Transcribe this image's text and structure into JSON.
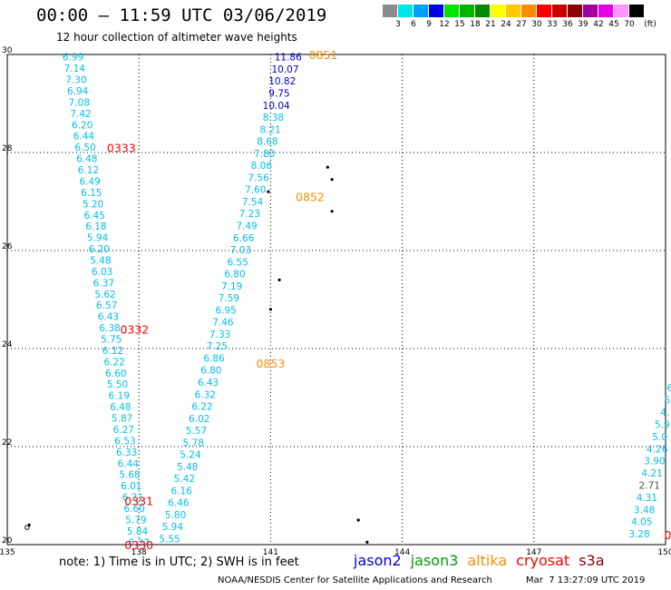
{
  "header": {
    "title": "00:00 – 11:59 UTC 03/06/2019",
    "subtitle": "12 hour collection of altimeter wave heights"
  },
  "legend": {
    "unit": "(ft)",
    "bins": [
      {
        "label": "3",
        "color": "#8c8c8c"
      },
      {
        "label": "6",
        "color": "#00e6e6"
      },
      {
        "label": "9",
        "color": "#00a0ff"
      },
      {
        "label": "12",
        "color": "#0000e6"
      },
      {
        "label": "15",
        "color": "#00e600"
      },
      {
        "label": "18",
        "color": "#00b400"
      },
      {
        "label": "21",
        "color": "#008c00"
      },
      {
        "label": "24",
        "color": "#ffff00"
      },
      {
        "label": "27",
        "color": "#ffc800"
      },
      {
        "label": "30",
        "color": "#ff8c00"
      },
      {
        "label": "33",
        "color": "#ff0000"
      },
      {
        "label": "36",
        "color": "#c80000"
      },
      {
        "label": "39",
        "color": "#8c0000"
      },
      {
        "label": "42",
        "color": "#a000a0"
      },
      {
        "label": "45",
        "color": "#e600e6"
      },
      {
        "label": "70",
        "color": "#ff96ff"
      },
      {
        "label": "",
        "color": "#000000"
      }
    ]
  },
  "map": {
    "lon_ticks": [
      "135",
      "138",
      "141",
      "144",
      "147",
      "150"
    ],
    "lat_ticks": [
      "20",
      "22",
      "24",
      "26",
      "28",
      "30"
    ],
    "lon_range": [
      135,
      150
    ],
    "lat_range": [
      20,
      30
    ],
    "track_a": {
      "values": [
        "6.99",
        "7.14",
        "7.30",
        "6.94",
        "7.08",
        "7.42",
        "6.20",
        "6.44",
        "6.50",
        "6.48",
        "6.12",
        "6.49",
        "6.15",
        "5.20",
        "6.45",
        "6.18",
        "5.94",
        "6.20",
        "5.48",
        "6.03",
        "6.37",
        "5.62",
        "6.57",
        "6.43",
        "6.38",
        "5.75",
        "6.12",
        "6.22",
        "6.60",
        "5.50",
        "6.19",
        "6.48",
        "5.87",
        "6.27",
        "6.53",
        "6.33",
        "6.44",
        "5.68",
        "6.01",
        "6.21",
        "6.60",
        "5.79",
        "5.84",
        "6.37"
      ],
      "lon_start": 136.5,
      "lon_end": 138.0
    },
    "track_b": {
      "blue": [
        "11.86",
        "10.07",
        "10.82",
        "9.75",
        "10.04"
      ],
      "cyan": [
        "8.38",
        "8.21",
        "8.68",
        "7.80",
        "8.06",
        "7.56",
        "7.60",
        "7.54",
        "7.23",
        "7.49",
        "6.66",
        "7.03",
        "6.55",
        "6.80",
        "7.19",
        "7.59",
        "6.95",
        "7.46",
        "7.33",
        "7.25",
        "6.86",
        "6.80",
        "6.43",
        "6.32",
        "6.22",
        "6.02",
        "5.57",
        "5.78",
        "5.24",
        "5.48",
        "5.42",
        "6.16",
        "6.46",
        "5.80",
        "5.94",
        "5.55"
      ],
      "lon_start": 141.4,
      "lon_end": 138.7
    },
    "track_c": {
      "values": [
        "6",
        "5",
        "4.",
        "5.9",
        "5.0",
        "4.26",
        "3.90",
        "4.21",
        "2.71",
        "4.31",
        "3.48",
        "4.05",
        "3.28"
      ],
      "gray_index": 8,
      "lon_start": 150.1,
      "lon_end": 149.4,
      "lat_start": 23.2
    },
    "times": [
      {
        "label": "0851",
        "color": "#ff8c00",
        "lon": 142.2,
        "lat": 30.0
      },
      {
        "label": "0333",
        "color": "#ff0000",
        "lon": 137.6,
        "lat": 28.1
      },
      {
        "label": "0852",
        "color": "#ff8c00",
        "lon": 141.9,
        "lat": 27.1
      },
      {
        "label": "0332",
        "color": "#ff0000",
        "lon": 137.9,
        "lat": 24.4
      },
      {
        "label": "0853",
        "color": "#ff8c00",
        "lon": 141.0,
        "lat": 23.7
      },
      {
        "label": "0331",
        "color": "#ff0000",
        "lon": 138.0,
        "lat": 20.9
      },
      {
        "label": "0330",
        "color": "#ff0000",
        "lon": 138.0,
        "lat": 20.0
      },
      {
        "label": "0",
        "color": "#ff0000",
        "lon": 150.05,
        "lat": 20.2
      }
    ]
  },
  "footer": {
    "note": "note: 1) Time is in UTC; 2) SWH is in feet",
    "satellites": [
      {
        "name": "jason2",
        "color": "#0000e6"
      },
      {
        "name": "jason3",
        "color": "#00a000"
      },
      {
        "name": "altika",
        "color": "#ff8c00"
      },
      {
        "name": "cryosat",
        "color": "#ff0000"
      },
      {
        "name": "s3a",
        "color": "#8c0000"
      }
    ],
    "credit": "NOAA/NESDIS Center for Satellite Applications and Research",
    "timestamp": "Mar  7 13:27:09 UTC 2019"
  }
}
